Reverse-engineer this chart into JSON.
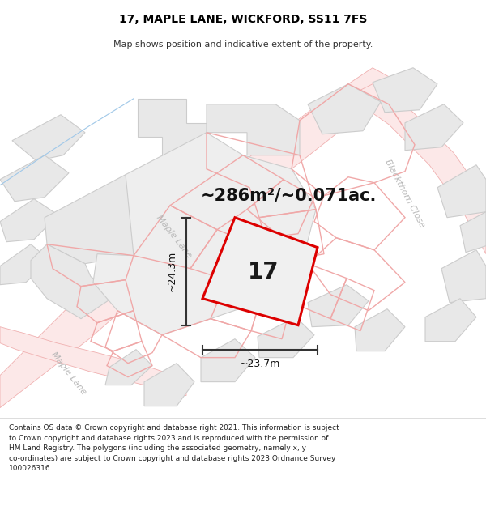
{
  "title": "17, MAPLE LANE, WICKFORD, SS11 7FS",
  "subtitle": "Map shows position and indicative extent of the property.",
  "footer": "Contains OS data © Crown copyright and database right 2021. This information is subject to Crown copyright and database rights 2023 and is reproduced with the permission of HM Land Registry. The polygons (including the associated geometry, namely x, y co-ordinates) are subject to Crown copyright and database rights 2023 Ordnance Survey 100026316.",
  "area_text": "~286m²/~0.071ac.",
  "label_17": "17",
  "dim_width": "~23.7m",
  "dim_height": "~24.3m",
  "street_maple": "Maple Lane",
  "street_maple2": "Maple Lane",
  "street_blackthorn": "Blackthorn Close",
  "map_bg": "#ffffff",
  "building_fill": "#e8e8e8",
  "building_edge": "#cccccc",
  "road_outline_color": "#f0b8b8",
  "highlight_color": "#dd0000",
  "highlight_fill": "#e8e8e8",
  "dim_color": "#333333",
  "text_color": "#111111",
  "area_fontsize": 15,
  "label_fontsize": 20,
  "dim_fontsize": 9,
  "street_fontsize": 8,
  "title_fontsize": 10,
  "subtitle_fontsize": 8
}
